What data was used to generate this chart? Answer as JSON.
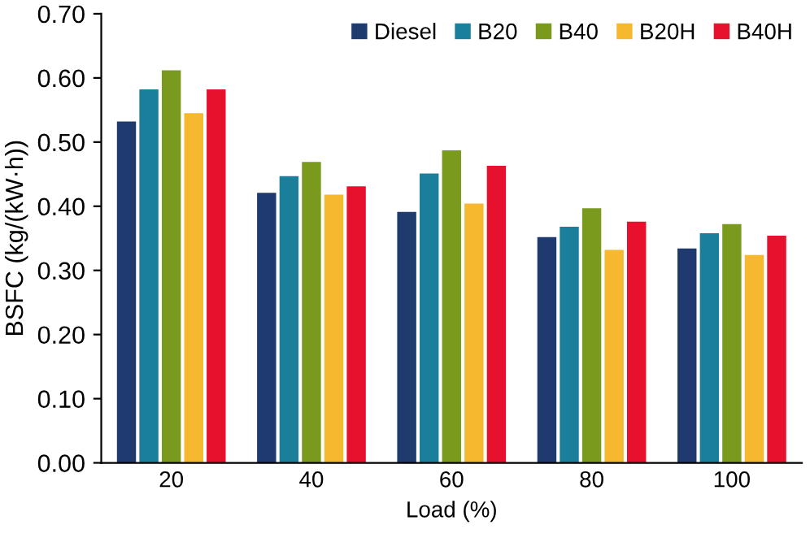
{
  "chart_data": {
    "type": "bar",
    "xlabel": "Load (%)",
    "ylabel": "BSFC (kg/(kW·h))",
    "categories": [
      "20",
      "40",
      "60",
      "80",
      "100"
    ],
    "series": [
      {
        "name": "Diesel",
        "color": "#1f3a6e",
        "values": [
          0.532,
          0.421,
          0.391,
          0.352,
          0.334
        ]
      },
      {
        "name": "B20",
        "color": "#1a7f9a",
        "values": [
          0.582,
          0.447,
          0.451,
          0.368,
          0.358
        ]
      },
      {
        "name": "B40",
        "color": "#7a9a1e",
        "values": [
          0.612,
          0.469,
          0.487,
          0.397,
          0.372
        ]
      },
      {
        "name": "B20H",
        "color": "#f5b82e",
        "values": [
          0.545,
          0.418,
          0.404,
          0.332,
          0.324
        ]
      },
      {
        "name": "B40H",
        "color": "#e8112d",
        "values": [
          0.582,
          0.431,
          0.463,
          0.376,
          0.354
        ]
      }
    ],
    "ylim": [
      0,
      0.7
    ],
    "yticks": [
      {
        "value": 0,
        "label": "0.00"
      },
      {
        "value": 0.1,
        "label": "0.10"
      },
      {
        "value": 0.2,
        "label": "0.20"
      },
      {
        "value": 0.3,
        "label": "0.30"
      },
      {
        "value": 0.4,
        "label": "0.40"
      },
      {
        "value": 0.5,
        "label": "0.50"
      },
      {
        "value": 0.6,
        "label": "0.60"
      },
      {
        "value": 0.7,
        "label": "0.70"
      }
    ],
    "grid": false,
    "legend": "top right"
  }
}
